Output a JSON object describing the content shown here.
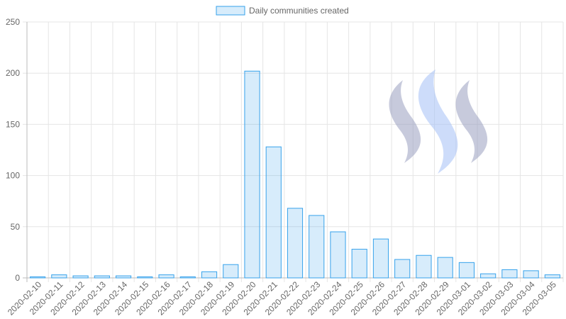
{
  "chart_data": {
    "type": "bar",
    "categories": [
      "2020-02-10",
      "2020-02-11",
      "2020-02-12",
      "2020-02-13",
      "2020-02-14",
      "2020-02-15",
      "2020-02-16",
      "2020-02-17",
      "2020-02-18",
      "2020-02-19",
      "2020-02-20",
      "2020-02-21",
      "2020-02-22",
      "2020-02-23",
      "2020-02-24",
      "2020-02-25",
      "2020-02-26",
      "2020-02-27",
      "2020-02-28",
      "2020-02-29",
      "2020-03-01",
      "2020-03-02",
      "2020-03-03",
      "2020-03-04",
      "2020-03-05"
    ],
    "series": [
      {
        "name": "Daily communities created",
        "color": "#36a2eb",
        "values": [
          1,
          3,
          2,
          2,
          2,
          1,
          3,
          1,
          6,
          13,
          202,
          128,
          68,
          61,
          45,
          28,
          38,
          18,
          22,
          20,
          15,
          4,
          8,
          7,
          3
        ]
      }
    ],
    "ylim": [
      0,
      250
    ],
    "yticks": [
      0,
      50,
      100,
      150,
      200,
      250
    ],
    "grid": true,
    "legend": "top"
  }
}
